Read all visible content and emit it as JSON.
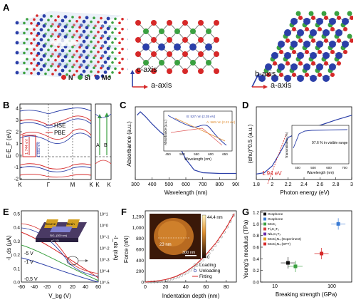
{
  "panel_labels": {
    "a": "A",
    "b": "B",
    "c": "C",
    "d": "D",
    "e": "E",
    "f": "F",
    "g": "G"
  },
  "panel_a": {
    "legend": [
      {
        "label": "N",
        "color": "#2e8b3a"
      },
      {
        "label": "Si",
        "color": "#3aa040"
      },
      {
        "label": "Mo",
        "color": "#2b3fa8"
      }
    ],
    "view1_axes": {
      "vertical": "c-axis",
      "horizontal": "a-axis"
    },
    "view2_axes": {
      "vertical": "b-axis",
      "horizontal": "a-axis"
    },
    "colors": {
      "n": "#d62828",
      "si": "#3aa040",
      "mo": "#2b3fa8",
      "bond": "#7a7a7a"
    }
  },
  "panel_b": {
    "ylabel": "E-E_F (eV)",
    "yticks": [
      "4",
      "3",
      "2",
      "1",
      "0",
      "-1",
      "-2"
    ],
    "xticks": [
      "K",
      "Γ",
      "M",
      "K"
    ],
    "legend": [
      "HSE",
      "PBE"
    ],
    "gap_labels": [
      "1.744 eV",
      "1.092 eV"
    ],
    "side_xticks": [
      "K",
      "K"
    ],
    "side_labels": [
      "A",
      "B"
    ]
  },
  "panel_c": {
    "ylabel": "Absorbance (a.u.)",
    "xlabel": "Wavelength (nm)",
    "xticks": [
      "300",
      "400",
      "500",
      "600",
      "700",
      "800",
      "900"
    ],
    "inset": {
      "ylabel": "Absorbance (a.u.)",
      "xlabel": "Wavelength (nm)",
      "xticks": [
        "450",
        "500",
        "550",
        "600",
        "650"
      ],
      "peaks": [
        "B: 527 nm (2.35 eV)",
        "A: 560 nm (2.21 eV)"
      ]
    }
  },
  "panel_d": {
    "ylabel": "(αhυ)^0.5 (a.u.)",
    "xlabel": "Photon energy (eV)",
    "xticks": [
      "1.8",
      "2",
      "2.2",
      "2.4",
      "2.6",
      "2.8",
      "3"
    ],
    "gap_label": "1.94 eV",
    "inset": {
      "ylabel": "Transmittance (%)",
      "xlabel": "Wavelength (nm)",
      "yticks": [
        "100",
        "80",
        "60",
        "40",
        "20",
        "0"
      ],
      "xticks": [
        "400",
        "500",
        "600",
        "700"
      ],
      "note": "97.6 % in visible range"
    }
  },
  "panel_e": {
    "ylabel_left": "-I_ds (μA)",
    "ylabel_right": "-I_ds (nA)",
    "xlabel": "V_bg (V)",
    "xticks": [
      "-60",
      "-40",
      "-20",
      "0",
      "20",
      "40",
      "60"
    ],
    "yticks_left": [
      "0.5",
      "0.4",
      "0.3",
      "0.2",
      "0.1",
      "0.0"
    ],
    "yticks_right": [
      "10^1",
      "10^0",
      "10^-1",
      "10^-2",
      "10^-3",
      "10^-4",
      "10^-5"
    ],
    "curve_labels": [
      "-5 V",
      "-1 V",
      "-0.5 V"
    ],
    "device_labels": [
      "Source",
      "Drain",
      "SiO₂ (300 nm)",
      "p⁺⁺ Si"
    ]
  },
  "panel_f": {
    "ylabel": "Force (nN)",
    "xlabel": "Indentation depth (nm)",
    "xticks": [
      "0",
      "20",
      "40",
      "60",
      "80"
    ],
    "yticks": [
      "1,200",
      "1,000",
      "800",
      "600",
      "400",
      "200",
      "0"
    ],
    "legend": [
      "Loading",
      "Unloading",
      "Fitting"
    ],
    "inset": {
      "scale_top": "44.4 nm",
      "scale_bottom": "0",
      "thickness": "23 nm",
      "scalebar": "300 nm"
    }
  },
  "panel_g": {
    "ylabel": "Young's modulus (TPa)",
    "xlabel": "Breaking strength (GPa)",
    "yticks": [
      "1.2",
      "1.0",
      "0.8",
      "0.6",
      "0.4",
      "0.2",
      "0.0"
    ],
    "xticks": [
      "10",
      "100"
    ],
    "legend": [
      "Graphene",
      "Graphene",
      "MoS₂",
      "Ti₃C₂Tₓ",
      "Nb₄C₃Tₓ",
      "MoSi₂N₄ (Experiment)",
      "MoSi₂N₄ (DFT)"
    ],
    "legend_colors": [
      "#111111",
      "#3a7bd5",
      "#3aa040",
      "#d64040",
      "#6a2ba8",
      "#e0a020",
      "#d62828"
    ]
  },
  "chart_data": [
    {
      "type": "line",
      "title": "",
      "xlabel": "Wavelength (nm)",
      "ylabel": "Absorbance (a.u.)",
      "xlim": [
        300,
        900
      ],
      "x": [
        310,
        330,
        360,
        400,
        450,
        500,
        520,
        540,
        560,
        600,
        650,
        700,
        800,
        900
      ],
      "series": [
        {
          "values": [
            0.95,
            1.0,
            0.93,
            0.82,
            0.7,
            0.6,
            0.6,
            0.55,
            0.5,
            0.3,
            0.14,
            0.1,
            0.09,
            0.09
          ]
        }
      ]
    },
    {
      "type": "line",
      "title": "",
      "xlabel": "Photon energy (eV)",
      "ylabel": "(αhυ)^0.5 (a.u.)",
      "xlim": [
        1.8,
        3.0
      ],
      "x": [
        1.8,
        1.9,
        1.94,
        2.0,
        2.1,
        2.2,
        2.4,
        2.6,
        2.8,
        3.0
      ],
      "series": [
        {
          "values": [
            0.08,
            0.1,
            0.14,
            0.2,
            0.4,
            0.62,
            0.73,
            0.8,
            0.88,
            0.95
          ]
        }
      ]
    },
    {
      "type": "line",
      "title": "",
      "xlabel": "Indentation depth (nm)",
      "ylabel": "Force (nN)",
      "xlim": [
        0,
        90
      ],
      "ylim": [
        0,
        1300
      ],
      "x": [
        0,
        10,
        20,
        30,
        40,
        50,
        60,
        70,
        80,
        88
      ],
      "series": [
        {
          "name": "Loading",
          "values": [
            0,
            15,
            45,
            100,
            190,
            320,
            500,
            720,
            990,
            1250
          ]
        },
        {
          "name": "Unloading",
          "values": [
            0,
            15,
            45,
            100,
            190,
            320,
            500,
            720,
            990,
            1250
          ]
        },
        {
          "name": "Fitting",
          "values": [
            0,
            15,
            45,
            100,
            190,
            320,
            500,
            720,
            990,
            1250
          ]
        }
      ]
    },
    {
      "type": "scatter",
      "title": "",
      "xlabel": "Breaking strength (GPa)",
      "ylabel": "Young's modulus (TPa)",
      "ylim": [
        0,
        1.2
      ],
      "xscale": "log",
      "series": [
        {
          "name": "Graphene",
          "x": [
            130
          ],
          "y": [
            1.0
          ]
        },
        {
          "name": "MoS₂",
          "x": [
            23
          ],
          "y": [
            0.27
          ]
        },
        {
          "name": "Ti₃C₂Tₓ",
          "x": [
            17
          ],
          "y": [
            0.33
          ]
        },
        {
          "name": "MoSi₂N₄ (Experiment)",
          "x": [
            66
          ],
          "y": [
            0.49
          ]
        }
      ]
    }
  ]
}
